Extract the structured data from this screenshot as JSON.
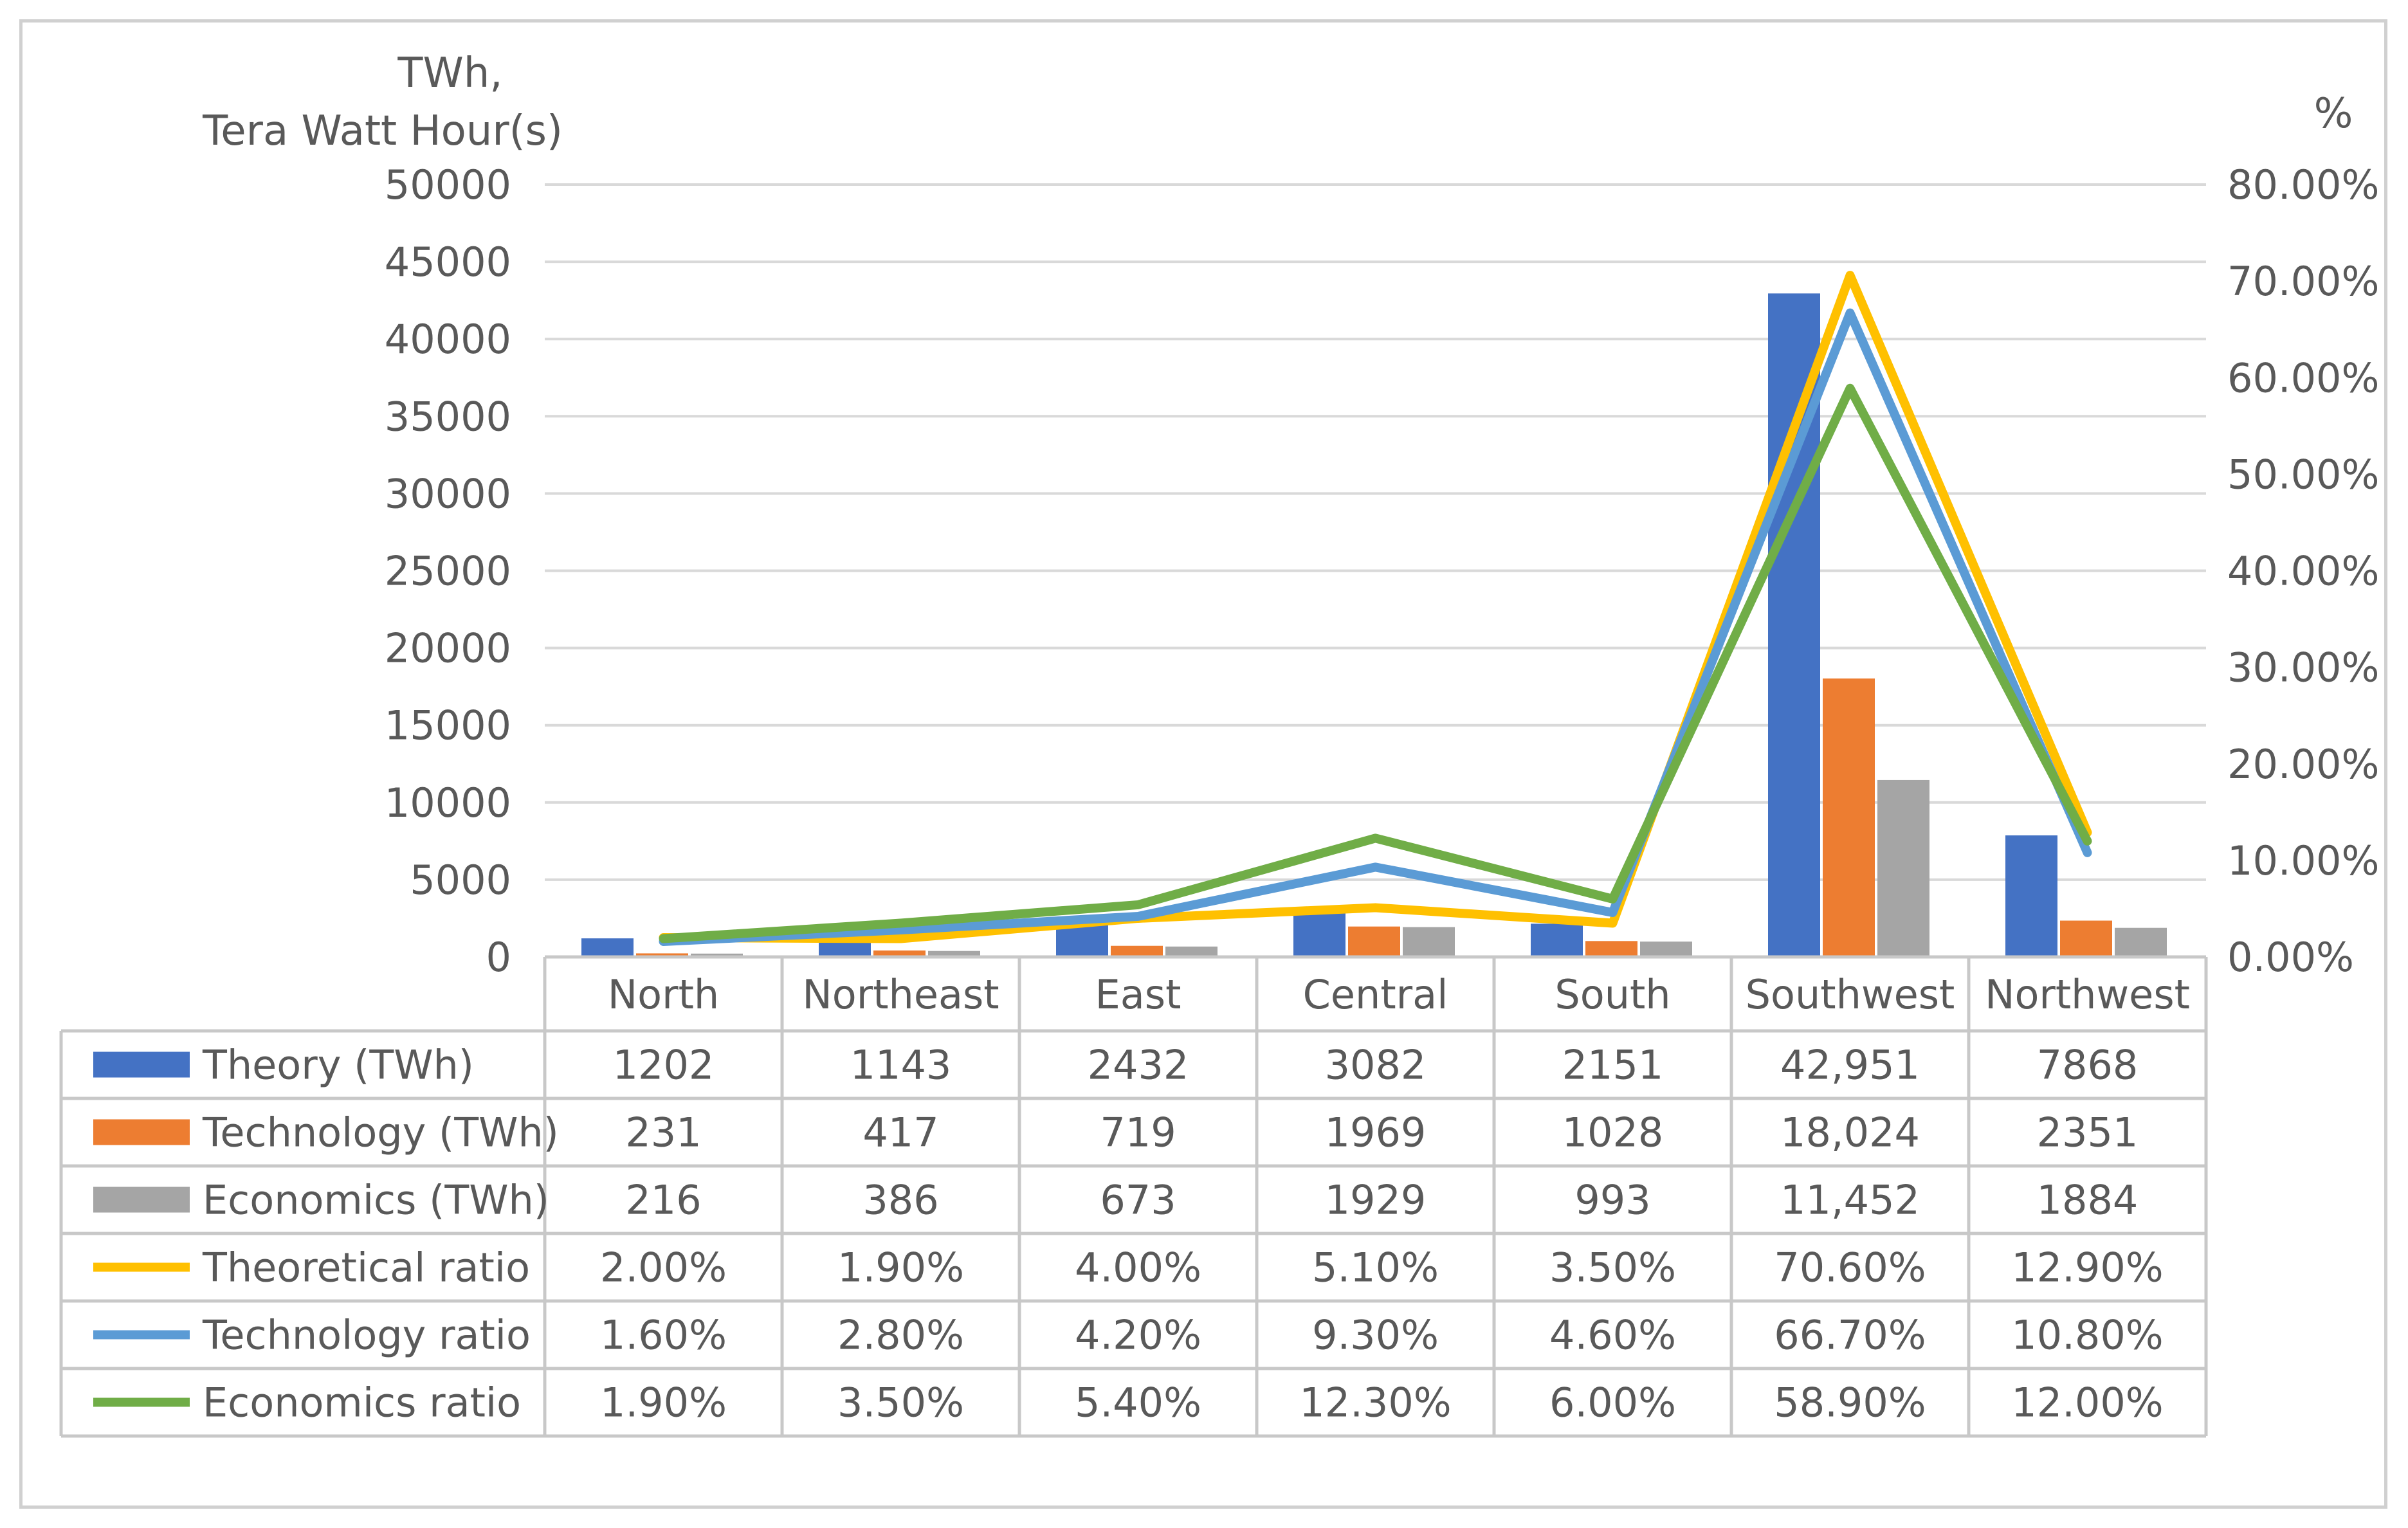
{
  "chart_data": {
    "type": "bar",
    "title": "",
    "left_axis_label_line1": "TWh,",
    "left_axis_label_line2": "Tera Watt Hour(s)",
    "right_axis_label": "%",
    "categories": [
      "North",
      "Northeast",
      "East",
      "Central",
      "South",
      "Southwest",
      "Northwest"
    ],
    "ylim_left": [
      0,
      50000
    ],
    "yticks_left": [
      0,
      5000,
      10000,
      15000,
      20000,
      25000,
      30000,
      35000,
      40000,
      45000,
      50000
    ],
    "ytick_labels_left": [
      "0",
      "5000",
      "10000",
      "15000",
      "20000",
      "25000",
      "30000",
      "35000",
      "40000",
      "45000",
      "50000"
    ],
    "ylim_right": [
      0,
      80
    ],
    "yticks_right": [
      0,
      10,
      20,
      30,
      40,
      50,
      60,
      70,
      80
    ],
    "ytick_labels_right": [
      "0.00%",
      "10.00%",
      "20.00%",
      "30.00%",
      "40.00%",
      "50.00%",
      "60.00%",
      "70.00%",
      "80.00%"
    ],
    "grid": true,
    "series": [
      {
        "name": "Theory (TWh)",
        "kind": "bar",
        "axis": "left",
        "color": "#4472C4",
        "values": [
          1202,
          1143,
          2432,
          3082,
          2151,
          42951,
          7868
        ],
        "labels": [
          "1202",
          "1143",
          "2432",
          "3082",
          "2151",
          "42,951",
          "7868"
        ]
      },
      {
        "name": "Technology (TWh)",
        "kind": "bar",
        "axis": "left",
        "color": "#ED7D31",
        "values": [
          231,
          417,
          719,
          1969,
          1028,
          18024,
          2351
        ],
        "labels": [
          "231",
          "417",
          "719",
          "1969",
          "1028",
          "18,024",
          "2351"
        ]
      },
      {
        "name": "Economics (TWh)",
        "kind": "bar",
        "axis": "left",
        "color": "#A5A5A5",
        "values": [
          216,
          386,
          673,
          1929,
          993,
          11452,
          1884
        ],
        "labels": [
          "216",
          "386",
          "673",
          "1929",
          "993",
          "11,452",
          "1884"
        ]
      },
      {
        "name": "Theoretical ratio",
        "kind": "line",
        "axis": "right",
        "color": "#FFC000",
        "values": [
          2.0,
          1.9,
          4.0,
          5.1,
          3.5,
          70.6,
          12.9
        ],
        "labels": [
          "2.00%",
          "1.90%",
          "4.00%",
          "5.10%",
          "3.50%",
          "70.60%",
          "12.90%"
        ]
      },
      {
        "name": "Technology ratio",
        "kind": "line",
        "axis": "right",
        "color": "#5B9BD5",
        "values": [
          1.6,
          2.8,
          4.2,
          9.3,
          4.6,
          66.7,
          10.8
        ],
        "labels": [
          "1.60%",
          "2.80%",
          "4.20%",
          "9.30%",
          "4.60%",
          "66.70%",
          "10.80%"
        ]
      },
      {
        "name": "Economics ratio",
        "kind": "line",
        "axis": "right",
        "color": "#70AD47",
        "values": [
          1.9,
          3.5,
          5.4,
          12.3,
          6.0,
          58.9,
          12.0
        ],
        "labels": [
          "1.90%",
          "3.50%",
          "5.40%",
          "12.30%",
          "6.00%",
          "58.90%",
          "12.00%"
        ]
      }
    ]
  }
}
